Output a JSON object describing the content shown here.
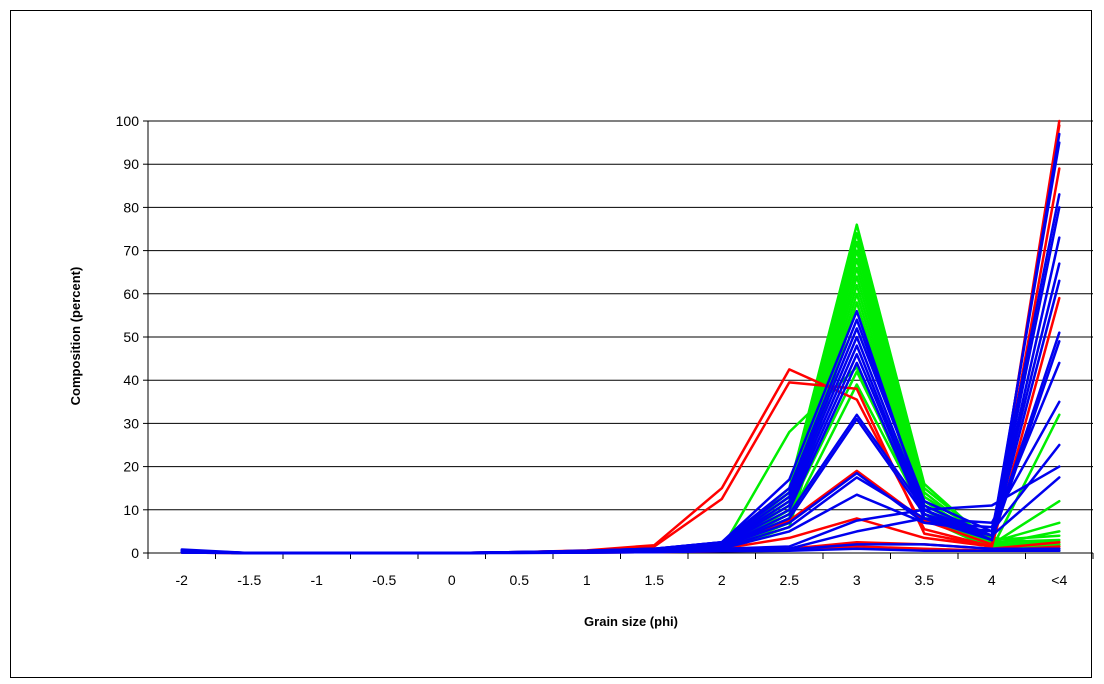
{
  "chart_data": {
    "type": "line",
    "title": "",
    "xlabel": "Grain size (phi)",
    "ylabel": "Composition (percent)",
    "categories": [
      "-2",
      "-1.5",
      "-1",
      "-0.5",
      "0",
      "0.5",
      "1",
      "1.5",
      "2",
      "2.5",
      "3",
      "3.5",
      "4",
      "<4"
    ],
    "ylim": [
      0,
      100
    ],
    "yticks": [
      0,
      10,
      20,
      30,
      40,
      50,
      60,
      70,
      80,
      90,
      100
    ],
    "grid": "horizontal",
    "legend": "none",
    "colors": {
      "red": "#ff0000",
      "green": "#00ee00",
      "blue": "#0000ee",
      "grid": "#000000"
    },
    "series": [
      {
        "color": "red",
        "values": [
          0.3,
          0,
          0,
          0,
          0,
          0.2,
          0.6,
          1.8,
          15,
          42.5,
          35.5,
          5.5,
          1.5,
          100
        ]
      },
      {
        "color": "red",
        "values": [
          0.3,
          0,
          0,
          0,
          0,
          0.2,
          0.5,
          1.5,
          12.5,
          39.5,
          38,
          4.5,
          1.5,
          99
        ]
      },
      {
        "color": "red",
        "values": [
          0.2,
          0,
          0,
          0,
          0,
          0.1,
          0.3,
          0.5,
          1.5,
          7.5,
          19,
          7.5,
          2,
          89
        ]
      },
      {
        "color": "red",
        "values": [
          0.2,
          0,
          0,
          0,
          0,
          0.1,
          0.2,
          0.4,
          1,
          3.5,
          8,
          3.5,
          1.5,
          59
        ]
      },
      {
        "color": "red",
        "values": [
          0.1,
          0,
          0,
          0,
          0,
          0.1,
          0.2,
          0.3,
          0.5,
          1,
          2.5,
          2,
          1,
          2.5
        ]
      },
      {
        "color": "red",
        "values": [
          0.1,
          0,
          0,
          0,
          0,
          0.1,
          0.1,
          0.2,
          0.4,
          0.8,
          1.5,
          1,
          0.5,
          1.5
        ]
      },
      {
        "color": "green",
        "values": [
          0.2,
          0,
          0,
          0,
          0,
          0.1,
          0.3,
          0.5,
          1,
          28,
          43,
          8,
          1,
          32
        ]
      },
      {
        "color": "green",
        "values": [
          0.2,
          0,
          0,
          0,
          0,
          0.1,
          0.3,
          0.6,
          2,
          15,
          76,
          16,
          2,
          12
        ]
      },
      {
        "color": "green",
        "values": [
          0.2,
          0,
          0,
          0,
          0,
          0.1,
          0.3,
          0.6,
          2,
          14,
          74,
          15,
          2.5,
          7
        ]
      },
      {
        "color": "green",
        "values": [
          0.2,
          0,
          0,
          0,
          0,
          0.1,
          0.3,
          0.5,
          1.8,
          13,
          72,
          14,
          2,
          5
        ]
      },
      {
        "color": "green",
        "values": [
          0.2,
          0,
          0,
          0,
          0,
          0.1,
          0.3,
          0.5,
          1.5,
          12,
          70,
          13,
          3,
          4
        ]
      },
      {
        "color": "green",
        "values": [
          0.2,
          0,
          0,
          0,
          0,
          0.1,
          0.2,
          0.5,
          1.5,
          11,
          68,
          12,
          2.5,
          3
        ]
      },
      {
        "color": "green",
        "values": [
          0.2,
          0,
          0,
          0,
          0,
          0.1,
          0.2,
          0.4,
          1.2,
          10,
          66,
          12,
          2,
          2.5
        ]
      },
      {
        "color": "green",
        "values": [
          0.2,
          0,
          0,
          0,
          0,
          0.1,
          0.2,
          0.4,
          1,
          9,
          64,
          11,
          3.5,
          2
        ]
      },
      {
        "color": "green",
        "values": [
          0.2,
          0,
          0,
          0,
          0,
          0.1,
          0.2,
          0.4,
          1,
          8,
          62,
          10,
          2,
          1.5
        ]
      },
      {
        "color": "green",
        "values": [
          0.2,
          0,
          0,
          0,
          0,
          0.1,
          0.2,
          0.3,
          0.8,
          7,
          60,
          9,
          1.5,
          1
        ]
      },
      {
        "color": "green",
        "values": [
          0.2,
          0,
          0,
          0,
          0,
          0.1,
          0.2,
          0.3,
          0.7,
          6,
          58,
          8,
          2.5,
          0.5
        ]
      },
      {
        "color": "green",
        "values": [
          0.2,
          0,
          0,
          0,
          0,
          0.1,
          0.2,
          0.3,
          0.7,
          10,
          42,
          10,
          2,
          1.5
        ]
      },
      {
        "color": "green",
        "values": [
          0.2,
          0,
          0,
          0,
          0,
          0.1,
          0.2,
          0.3,
          0.7,
          8,
          39,
          9,
          1.5,
          2
        ]
      },
      {
        "color": "blue",
        "values": [
          0.8,
          0,
          0,
          0,
          0,
          0.2,
          0.5,
          1,
          2.5,
          17,
          56,
          10,
          3,
          97
        ]
      },
      {
        "color": "blue",
        "values": [
          0.6,
          0,
          0,
          0,
          0,
          0.2,
          0.5,
          1,
          2.5,
          15,
          54,
          11,
          4,
          95
        ]
      },
      {
        "color": "blue",
        "values": [
          0.5,
          0,
          0,
          0,
          0,
          0.2,
          0.5,
          1,
          2.5,
          14,
          52,
          12,
          5,
          83
        ]
      },
      {
        "color": "blue",
        "values": [
          0.5,
          0,
          0,
          0,
          0,
          0.2,
          0.4,
          0.8,
          2.2,
          13,
          50,
          10,
          3,
          80
        ]
      },
      {
        "color": "blue",
        "values": [
          0.4,
          0,
          0,
          0,
          0,
          0.2,
          0.4,
          0.8,
          2,
          12,
          48,
          9,
          3,
          73
        ]
      },
      {
        "color": "blue",
        "values": [
          0.4,
          0,
          0,
          0,
          0,
          0.1,
          0.4,
          0.8,
          2,
          11,
          46,
          9,
          4,
          67
        ]
      },
      {
        "color": "blue",
        "values": [
          0.3,
          0,
          0,
          0,
          0,
          0.1,
          0.3,
          0.7,
          1.8,
          10,
          44,
          8,
          3,
          63
        ]
      },
      {
        "color": "blue",
        "values": [
          0.3,
          0,
          0,
          0,
          0,
          0.1,
          0.3,
          0.6,
          1.5,
          9,
          32,
          10,
          4,
          51
        ]
      },
      {
        "color": "blue",
        "values": [
          0.3,
          0,
          0,
          0,
          0,
          0.1,
          0.3,
          0.6,
          1.5,
          8,
          31,
          9,
          3,
          49
        ]
      },
      {
        "color": "blue",
        "values": [
          0.3,
          0,
          0,
          0,
          0,
          0.1,
          0.3,
          0.6,
          1.5,
          7,
          18.5,
          7,
          6,
          44
        ]
      },
      {
        "color": "blue",
        "values": [
          0.2,
          0,
          0,
          0,
          0,
          0.1,
          0.2,
          0.5,
          1.2,
          6,
          17.5,
          8,
          7,
          35
        ]
      },
      {
        "color": "blue",
        "values": [
          0.2,
          0,
          0,
          0,
          0,
          0.1,
          0.2,
          0.4,
          1,
          5,
          13.5,
          7,
          5,
          25
        ]
      },
      {
        "color": "blue",
        "values": [
          0.2,
          0,
          0,
          0,
          0,
          0.1,
          0.2,
          0.4,
          1,
          1.5,
          7.5,
          10,
          11,
          20
        ]
      },
      {
        "color": "blue",
        "values": [
          0.2,
          0,
          0,
          0,
          0,
          0.1,
          0.2,
          0.3,
          0.8,
          1,
          5,
          8,
          4,
          17.5
        ]
      },
      {
        "color": "blue",
        "values": [
          0.1,
          0,
          0,
          0,
          0,
          0.1,
          0.1,
          0.2,
          0.5,
          0.8,
          2,
          2,
          1,
          1
        ]
      },
      {
        "color": "blue",
        "values": [
          0.1,
          0,
          0,
          0,
          0,
          0,
          0.1,
          0.2,
          0.4,
          0.5,
          1,
          0.5,
          0.5,
          0.5
        ]
      }
    ]
  }
}
